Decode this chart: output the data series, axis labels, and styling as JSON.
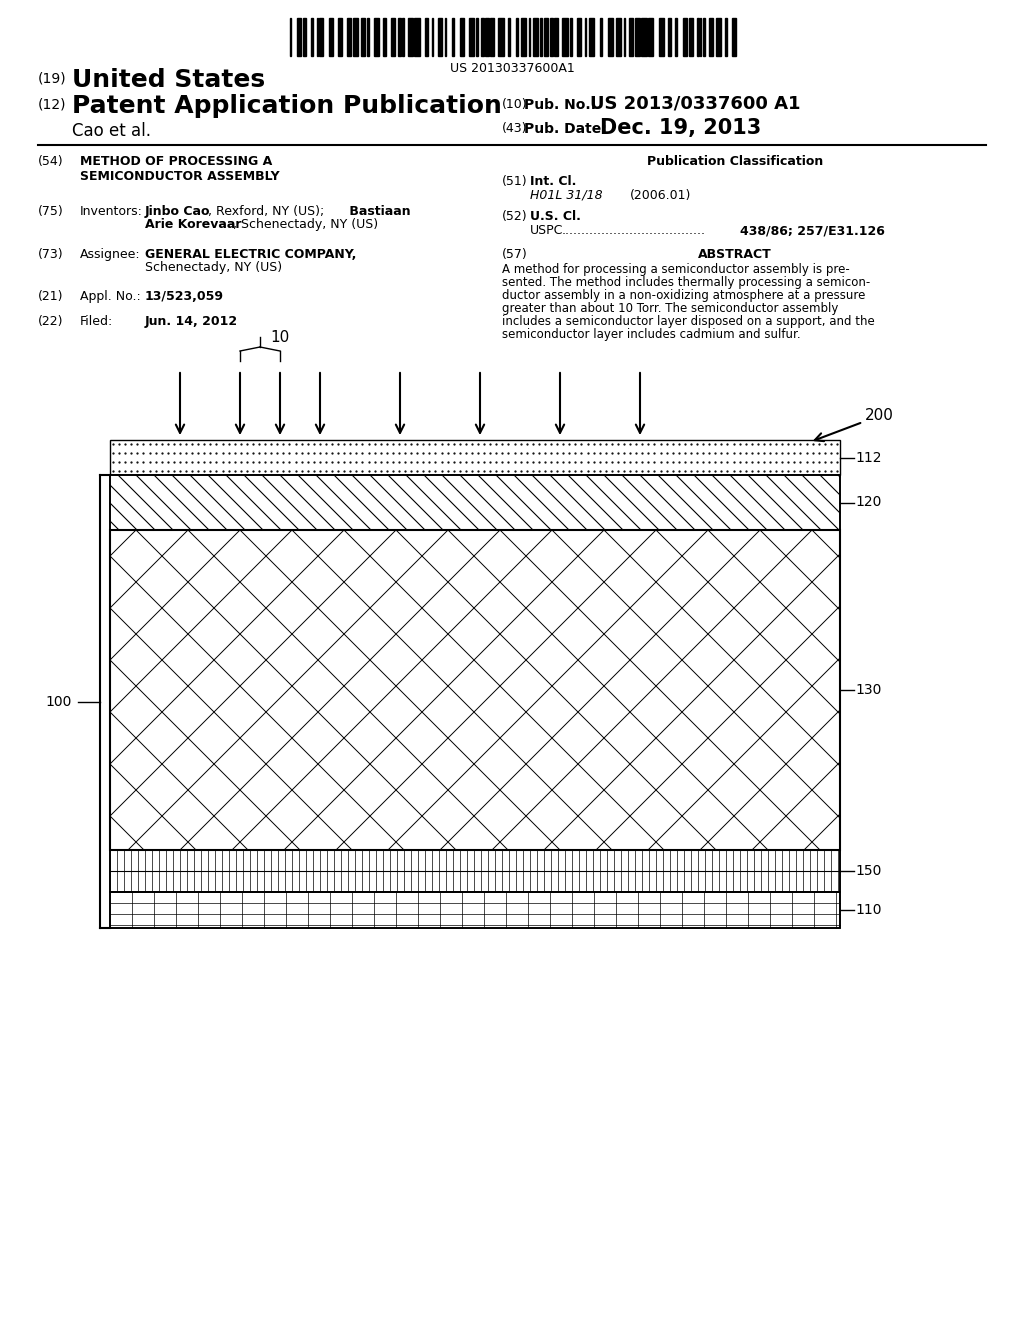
{
  "bg_color": "#ffffff",
  "barcode_text": "US 20130337600A1",
  "header_line1_num": "(19)",
  "header_line1_text": "United States",
  "header_line2_num": "(12)",
  "header_line2_text": "Patent Application Publication",
  "header_line2_right_num": "(10)",
  "header_line2_right_label": "Pub. No.:",
  "header_line2_right_val": "US 2013/0337600 A1",
  "header_line3_left": "Cao et al.",
  "header_line3_right_num": "(43)",
  "header_line3_right_label": "Pub. Date:",
  "header_line3_right_val": "Dec. 19, 2013",
  "field54_num": "(54)",
  "field54_label": "METHOD OF PROCESSING A\nSEMICONDUCTOR ASSEMBLY",
  "field75_num": "(75)",
  "field75_label": "Inventors:",
  "field75_val_bold1": "Jinbo Cao",
  "field75_val_reg1": ", Rexford, NY (US);",
  "field75_val_bold2": "Bastiaan",
  "field75_val_bold3": "Arie Korevaar",
  "field75_val_reg3": ", Schenectady, NY (US)",
  "field73_num": "(73)",
  "field73_label": "Assignee:",
  "field73_val_bold": "GENERAL ELECTRIC COMPANY,",
  "field73_val_reg": "Schenectady, NY (US)",
  "field21_num": "(21)",
  "field21_label": "Appl. No.:",
  "field21_val": "13/523,059",
  "field22_num": "(22)",
  "field22_label": "Filed:",
  "field22_val": "Jun. 14, 2012",
  "pub_class_title": "Publication Classification",
  "field51_num": "(51)",
  "field51_label": "Int. Cl.",
  "field51_class": "H01L 31/18",
  "field51_year": "(2006.01)",
  "field52_num": "(52)",
  "field52_label": "U.S. Cl.",
  "field52_sub": "USPC",
  "field52_dots": "....................................",
  "field52_val": "438/86; 257/E31.126",
  "field57_num": "(57)",
  "field57_label": "ABSTRACT",
  "abstract_line1": "A method for processing a semiconductor assembly is pre-",
  "abstract_line2": "sented. The method includes thermally processing a semicon-",
  "abstract_line3": "ductor assembly in a non-oxidizing atmosphere at a pressure",
  "abstract_line4": "greater than about 10 Torr. The semiconductor assembly",
  "abstract_line5": "includes a semiconductor layer disposed on a support, and the",
  "abstract_line6": "semiconductor layer includes cadmium and sulfur.",
  "diagram_label_200": "200",
  "diagram_label_10": "10",
  "diagram_label_100": "100",
  "diagram_label_112": "112",
  "diagram_label_120": "120",
  "diagram_label_130": "130",
  "diagram_label_150": "150",
  "diagram_label_110": "110"
}
